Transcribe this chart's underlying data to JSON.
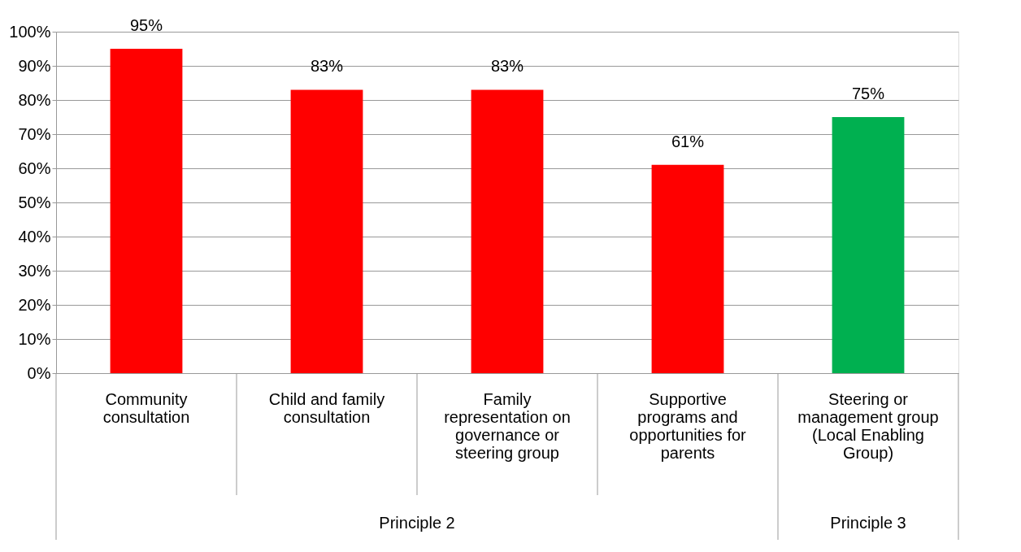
{
  "chart_data": {
    "type": "bar",
    "categories": [
      "Community consultation",
      "Child and family consultation",
      "Family representation on governance or steering group",
      "Supportive programs and opportunities for parents",
      "Steering or management group (Local Enabling Group)"
    ],
    "values": [
      95,
      83,
      83,
      61,
      75
    ],
    "colors": [
      "#ff0000",
      "#ff0000",
      "#ff0000",
      "#ff0000",
      "#00b050"
    ],
    "value_labels": [
      "95%",
      "83%",
      "83%",
      "61%",
      "75%"
    ],
    "ylim": [
      0,
      100
    ],
    "yticks": [
      {
        "value": 0,
        "label": "0%"
      },
      {
        "value": 10,
        "label": "10%"
      },
      {
        "value": 20,
        "label": "20%"
      },
      {
        "value": 30,
        "label": "30%"
      },
      {
        "value": 40,
        "label": "40%"
      },
      {
        "value": 50,
        "label": "50%"
      },
      {
        "value": 60,
        "label": "60%"
      },
      {
        "value": 70,
        "label": "70%"
      },
      {
        "value": 80,
        "label": "80%"
      },
      {
        "value": 90,
        "label": "90%"
      },
      {
        "value": 100,
        "label": "100%"
      }
    ],
    "grid": "y",
    "annotations": [
      "Principle 2",
      "Principle 3"
    ]
  }
}
